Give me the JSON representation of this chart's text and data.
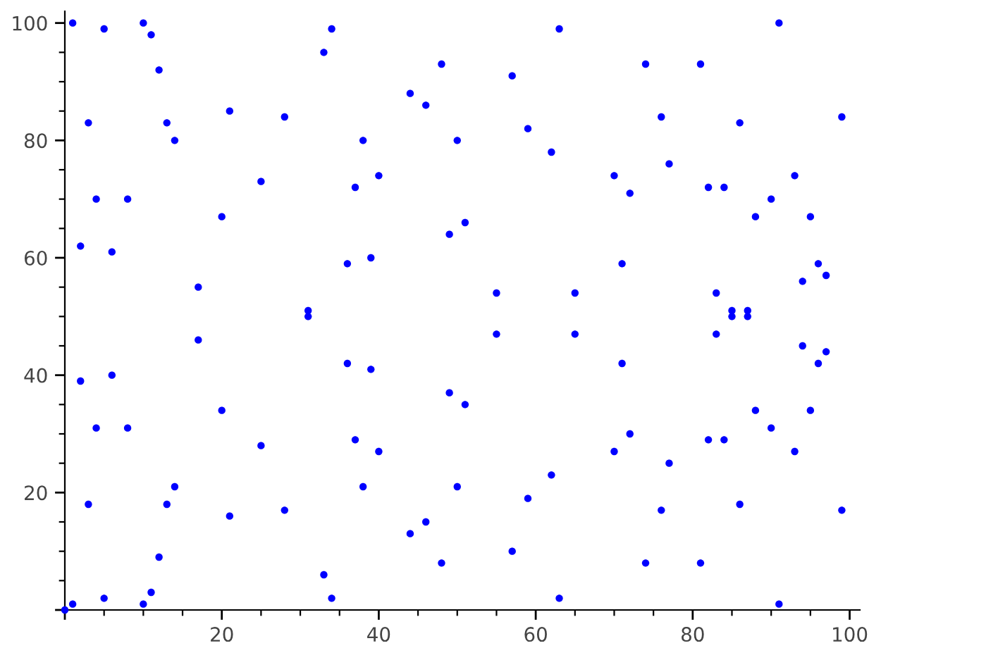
{
  "chart_data": {
    "type": "scatter",
    "color": "#0000ff",
    "marker": "circle",
    "grid": false,
    "x": [
      0,
      1,
      1,
      2,
      2,
      3,
      3,
      4,
      4,
      5,
      5,
      6,
      6,
      8,
      8,
      10,
      10,
      11,
      11,
      12,
      12,
      13,
      13,
      14,
      14,
      17,
      17,
      20,
      20,
      21,
      21,
      25,
      25,
      28,
      28,
      31,
      31,
      33,
      33,
      34,
      34,
      36,
      36,
      37,
      37,
      38,
      38,
      39,
      39,
      40,
      40,
      44,
      44,
      46,
      46,
      48,
      48,
      49,
      49,
      50,
      50,
      51,
      51,
      55,
      55,
      57,
      57,
      59,
      59,
      62,
      62,
      63,
      63,
      65,
      65,
      70,
      70,
      71,
      71,
      72,
      72,
      74,
      74,
      76,
      76,
      77,
      77,
      81,
      81,
      82,
      82,
      83,
      83,
      84,
      84,
      85,
      85,
      86,
      86,
      87,
      87,
      88,
      88,
      90,
      90,
      91,
      91,
      93,
      93,
      94,
      94,
      95,
      95,
      96,
      96,
      97,
      97,
      99,
      99
    ],
    "values": [
      0,
      100,
      1,
      62,
      39,
      83,
      18,
      70,
      31,
      99,
      2,
      61,
      40,
      70,
      31,
      100,
      1,
      98,
      3,
      92,
      9,
      83,
      18,
      80,
      21,
      55,
      46,
      67,
      34,
      85,
      16,
      73,
      28,
      84,
      17,
      51,
      50,
      95,
      6,
      99,
      2,
      59,
      42,
      72,
      29,
      80,
      21,
      60,
      41,
      74,
      27,
      88,
      13,
      86,
      15,
      93,
      8,
      64,
      37,
      80,
      21,
      66,
      35,
      54,
      47,
      91,
      10,
      82,
      19,
      78,
      23,
      99,
      2,
      54,
      47,
      74,
      27,
      59,
      42,
      71,
      30,
      93,
      8,
      84,
      17,
      76,
      25,
      93,
      8,
      72,
      29,
      54,
      47,
      72,
      29,
      51,
      50,
      83,
      18,
      51,
      50,
      67,
      34,
      70,
      31,
      100,
      1,
      74,
      27,
      56,
      45,
      67,
      34,
      59,
      42,
      57,
      44,
      84,
      17
    ],
    "xlim": [
      0,
      101.3
    ],
    "ylim": [
      0,
      102
    ],
    "xticks": [
      {
        "value": 0,
        "label": null
      },
      20,
      40,
      60,
      80,
      100
    ],
    "yticks": [
      {
        "value": 0,
        "label": null
      },
      20,
      40,
      60,
      80,
      100
    ]
  }
}
